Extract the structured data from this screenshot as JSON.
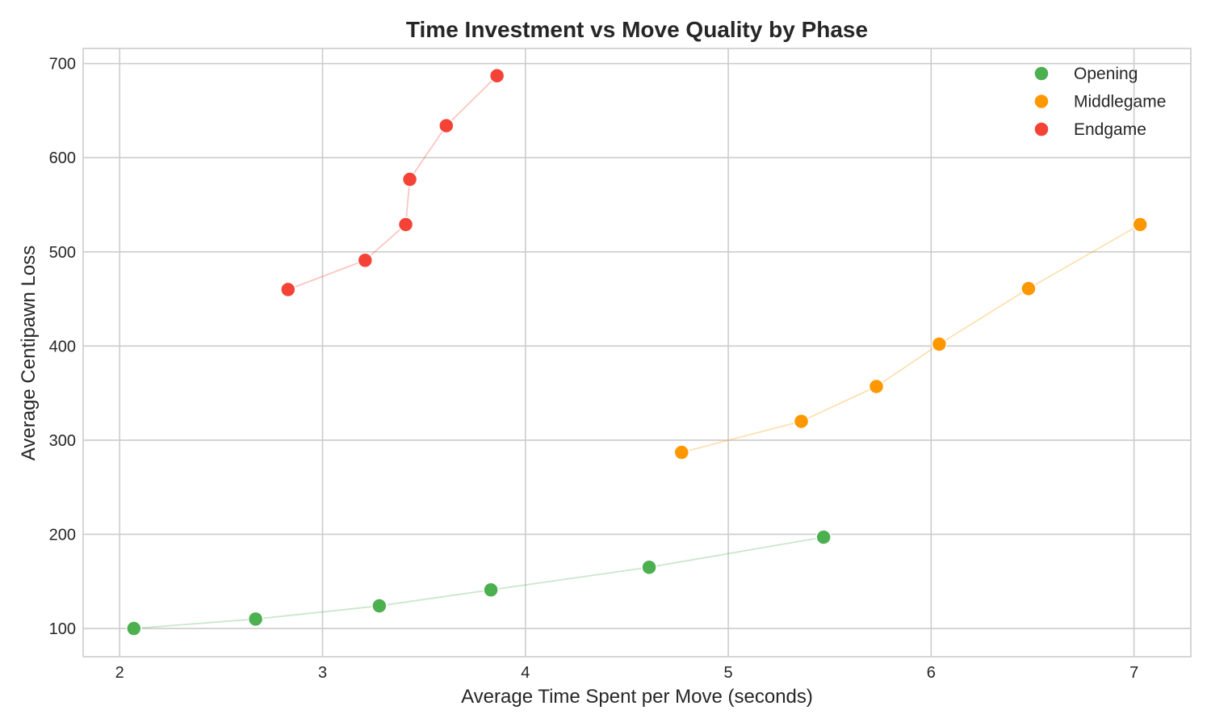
{
  "chart_data": {
    "type": "scatter",
    "title": "Time Investment vs Move Quality by Phase",
    "xlabel": "Average Time Spent per Move (seconds)",
    "ylabel": "Average Centipawn Loss",
    "xlim": [
      1.82,
      7.28
    ],
    "ylim": [
      70,
      716
    ],
    "xticks": [
      2,
      3,
      4,
      5,
      6,
      7
    ],
    "yticks": [
      100,
      200,
      300,
      400,
      500,
      600,
      700
    ],
    "grid": true,
    "legend_position": "top-right",
    "connect_points": true,
    "series": [
      {
        "name": "Opening",
        "color": "#4caf50",
        "points": [
          {
            "x": 2.07,
            "y": 100
          },
          {
            "x": 2.67,
            "y": 110
          },
          {
            "x": 3.28,
            "y": 124
          },
          {
            "x": 3.83,
            "y": 141
          },
          {
            "x": 4.61,
            "y": 165
          },
          {
            "x": 5.47,
            "y": 197
          }
        ]
      },
      {
        "name": "Middlegame",
        "color": "#ff9800",
        "points": [
          {
            "x": 4.77,
            "y": 287
          },
          {
            "x": 5.36,
            "y": 320
          },
          {
            "x": 5.73,
            "y": 357
          },
          {
            "x": 6.04,
            "y": 402
          },
          {
            "x": 6.48,
            "y": 461
          },
          {
            "x": 7.03,
            "y": 529
          }
        ]
      },
      {
        "name": "Endgame",
        "color": "#f44336",
        "points": [
          {
            "x": 2.83,
            "y": 460
          },
          {
            "x": 3.21,
            "y": 491
          },
          {
            "x": 3.41,
            "y": 529
          },
          {
            "x": 3.43,
            "y": 577
          },
          {
            "x": 3.61,
            "y": 634
          },
          {
            "x": 3.86,
            "y": 687
          }
        ]
      }
    ]
  }
}
